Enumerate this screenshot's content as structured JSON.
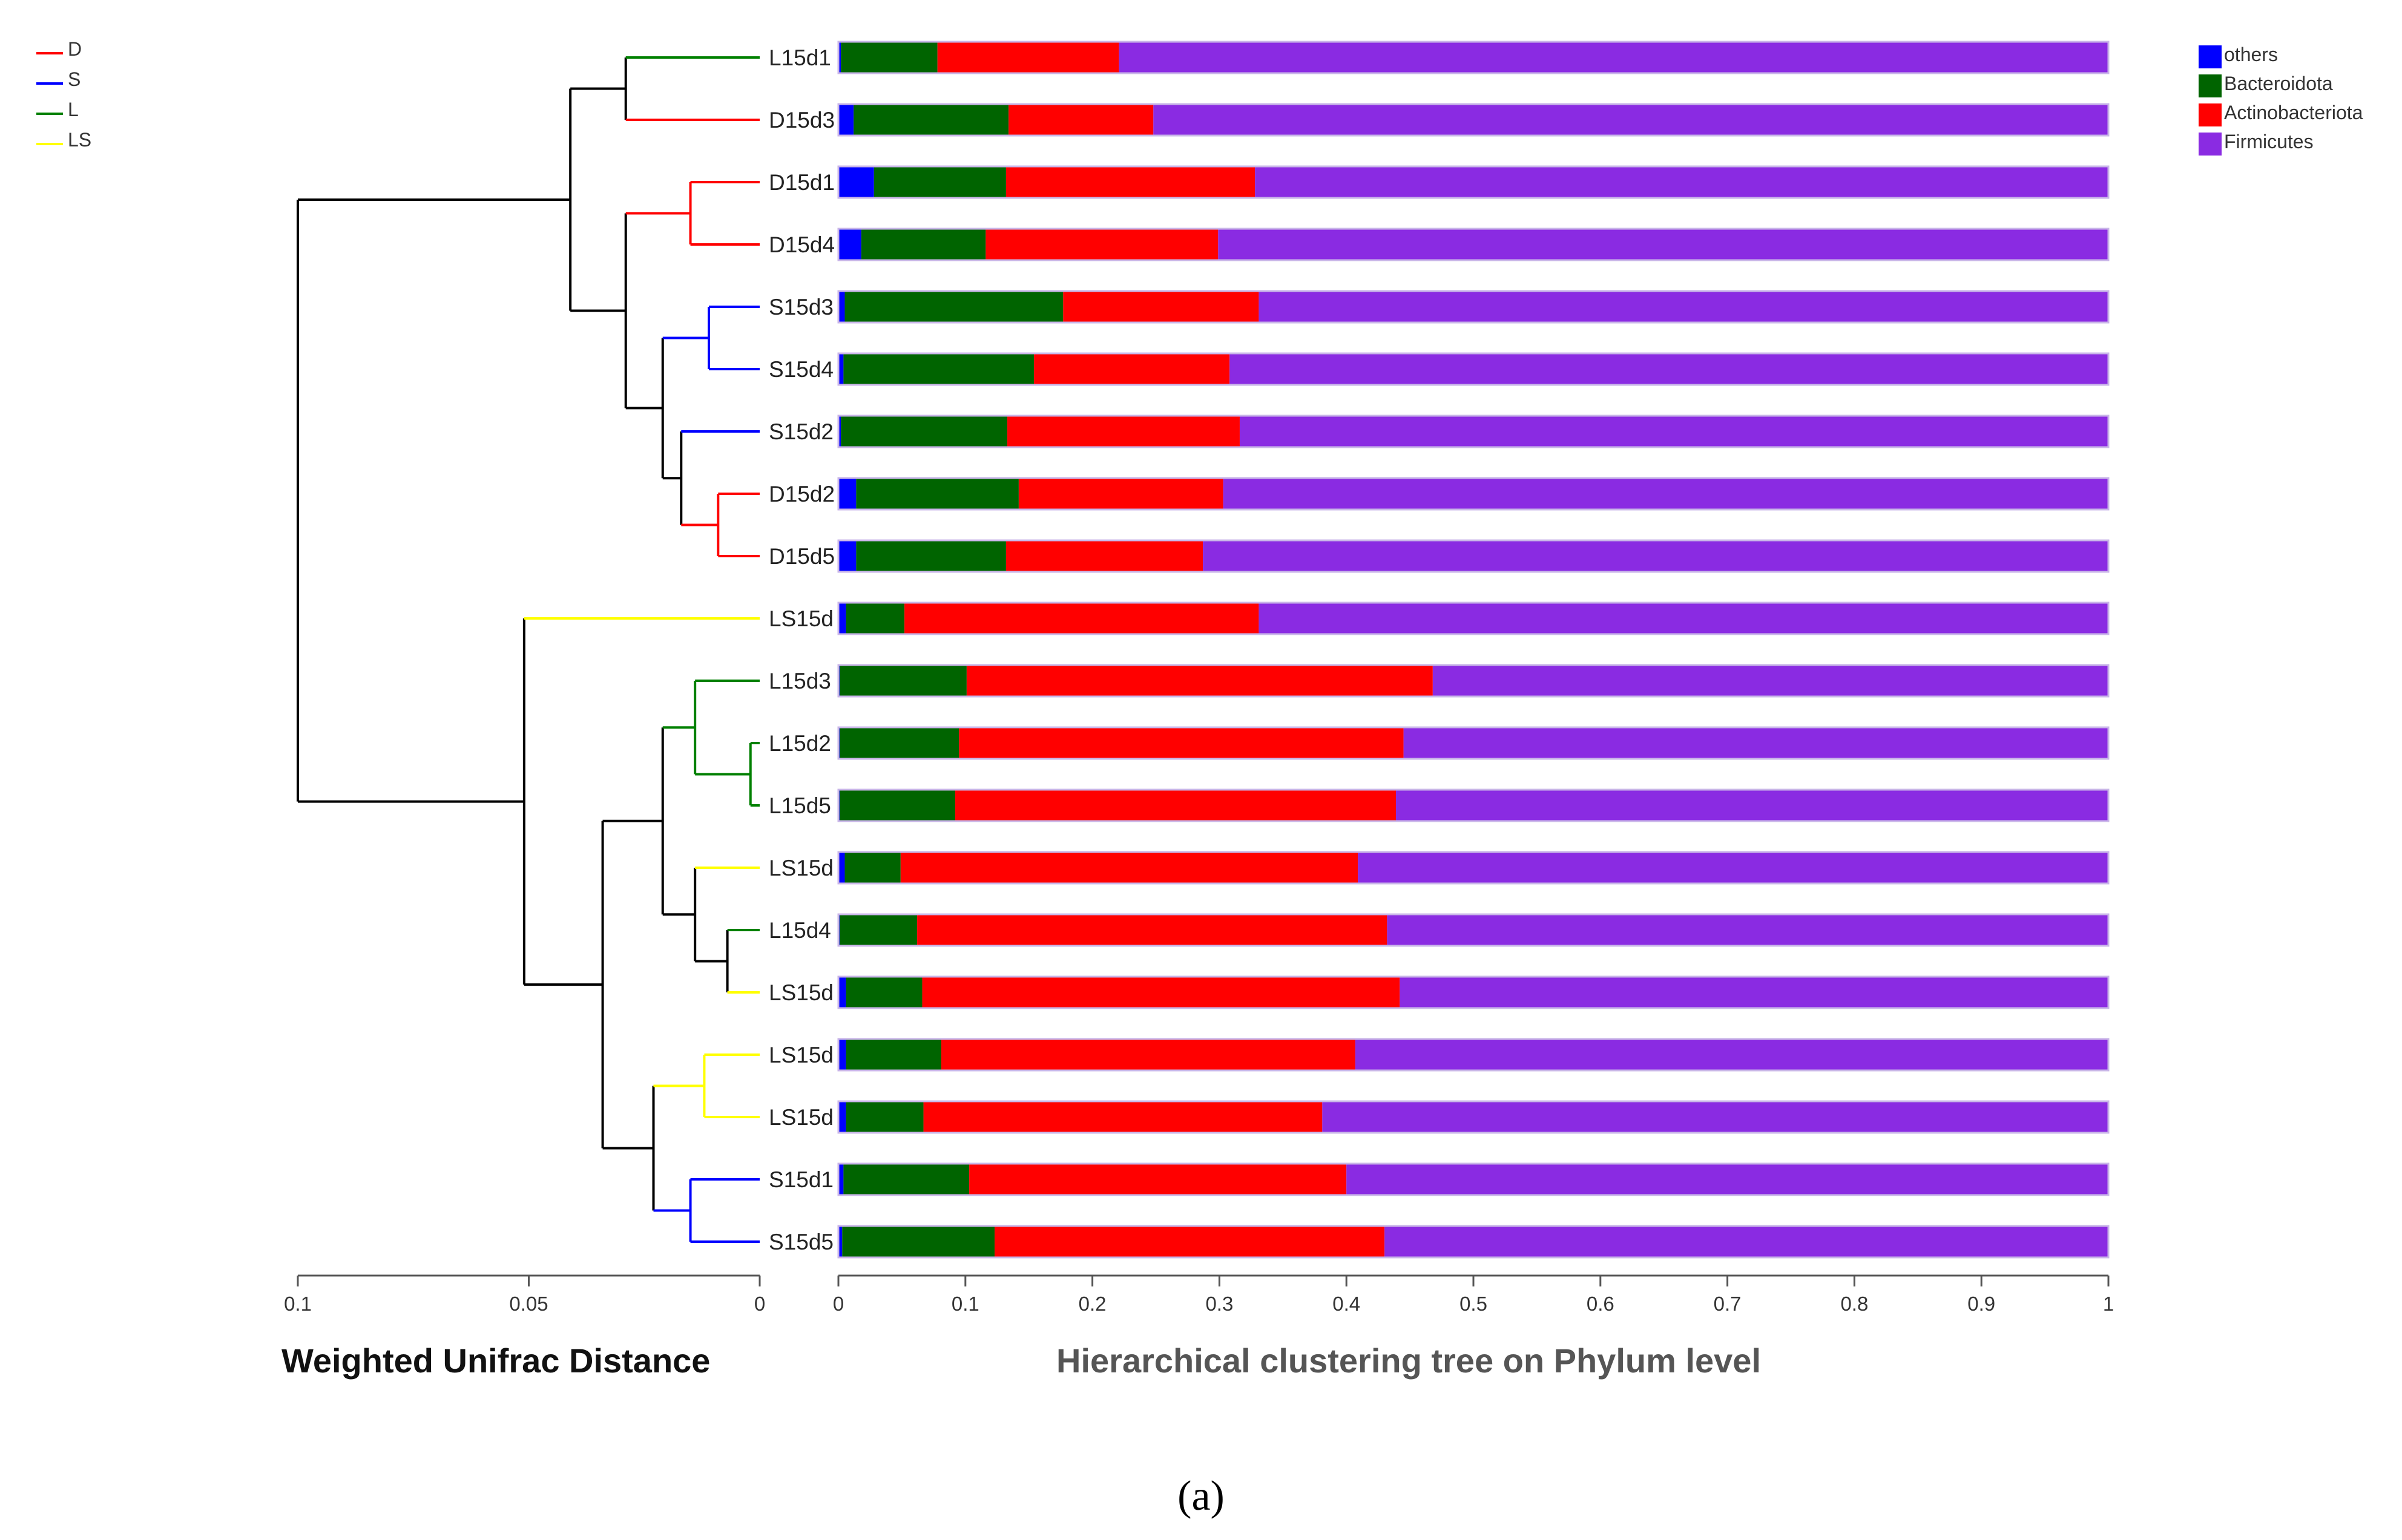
{
  "chart_data": {
    "type": "bar",
    "orientation": "horizontal",
    "stacked": true,
    "samples": [
      {
        "label": "L15d1",
        "group": "L"
      },
      {
        "label": "D15d3",
        "group": "D"
      },
      {
        "label": "D15d1",
        "group": "D"
      },
      {
        "label": "D15d4",
        "group": "D"
      },
      {
        "label": "S15d3",
        "group": "S"
      },
      {
        "label": "S15d4",
        "group": "S"
      },
      {
        "label": "S15d2",
        "group": "S"
      },
      {
        "label": "D15d2",
        "group": "D"
      },
      {
        "label": "D15d5",
        "group": "D"
      },
      {
        "label": "LS15d",
        "group": "LS"
      },
      {
        "label": "L15d3",
        "group": "L"
      },
      {
        "label": "L15d2",
        "group": "L"
      },
      {
        "label": "L15d5",
        "group": "L"
      },
      {
        "label": "LS15d",
        "group": "LS"
      },
      {
        "label": "L15d4",
        "group": "L"
      },
      {
        "label": "LS15d",
        "group": "LS"
      },
      {
        "label": "LS15d",
        "group": "LS"
      },
      {
        "label": "LS15d",
        "group": "LS"
      },
      {
        "label": "S15d1",
        "group": "S"
      },
      {
        "label": "S15d5",
        "group": "S"
      }
    ],
    "series": [
      {
        "name": "others",
        "color": "#0000ff",
        "values": [
          0.002,
          0.012,
          0.028,
          0.018,
          0.005,
          0.004,
          0.002,
          0.014,
          0.014,
          0.006,
          0.001,
          0.001,
          0.001,
          0.005,
          0.001,
          0.006,
          0.006,
          0.006,
          0.004,
          0.003
        ]
      },
      {
        "name": "Bacteroidota",
        "color": "#006400",
        "values": [
          0.076,
          0.122,
          0.104,
          0.098,
          0.172,
          0.15,
          0.131,
          0.128,
          0.118,
          0.046,
          0.1,
          0.094,
          0.091,
          0.044,
          0.061,
          0.06,
          0.075,
          0.061,
          0.099,
          0.12
        ]
      },
      {
        "name": "Actinobacteriota",
        "color": "#ff0000",
        "values": [
          0.143,
          0.114,
          0.196,
          0.183,
          0.154,
          0.154,
          0.183,
          0.161,
          0.155,
          0.279,
          0.367,
          0.35,
          0.347,
          0.36,
          0.37,
          0.376,
          0.326,
          0.314,
          0.297,
          0.307
        ]
      },
      {
        "name": "Firmicutes",
        "color": "#8a2be2",
        "values": [
          0.779,
          0.752,
          0.672,
          0.701,
          0.669,
          0.692,
          0.684,
          0.697,
          0.713,
          0.669,
          0.532,
          0.555,
          0.561,
          0.591,
          0.568,
          0.558,
          0.593,
          0.619,
          0.6,
          0.57
        ]
      }
    ],
    "bar_axis": {
      "ticks": [
        "0",
        "0.1",
        "0.2",
        "0.3",
        "0.4",
        "0.5",
        "0.6",
        "0.7",
        "0.8",
        "0.9",
        "1"
      ],
      "range": [
        0,
        1
      ]
    },
    "tree_axis": {
      "ticks": [
        "0.1",
        "0.05",
        "0"
      ],
      "range": [
        0.1,
        0
      ]
    },
    "tree": {
      "nodes": [
        {
          "id": "a",
          "children": [
            "L15d1",
            "D15d3"
          ],
          "height": 0.029,
          "color": "#000000"
        },
        {
          "id": "b",
          "children": [
            "D15d1",
            "D15d4"
          ],
          "height": 0.015,
          "color": "#ff0000"
        },
        {
          "id": "c",
          "children": [
            "S15d3",
            "S15d4"
          ],
          "height": 0.011,
          "color": "#0000ff"
        },
        {
          "id": "d",
          "children": [
            "D15d2",
            "D15d5"
          ],
          "height": 0.009,
          "color": "#ff0000"
        },
        {
          "id": "e",
          "children": [
            "S15d2",
            "d"
          ],
          "height": 0.017,
          "color": "#000000"
        },
        {
          "id": "f",
          "children": [
            "c",
            "e"
          ],
          "height": 0.021,
          "color": "#000000"
        },
        {
          "id": "g",
          "children": [
            "b",
            "f"
          ],
          "height": 0.029,
          "color": "#000000"
        },
        {
          "id": "h",
          "children": [
            "a",
            "g"
          ],
          "height": 0.041,
          "color": "#000000"
        },
        {
          "id": "i",
          "children": [
            "L15d2",
            "L15d5"
          ],
          "height": 0.002,
          "color": "#008000"
        },
        {
          "id": "j",
          "children": [
            "L15d3",
            "i"
          ],
          "height": 0.014,
          "color": "#008000"
        },
        {
          "id": "k",
          "children": [
            "L15d4",
            "LS15d#2"
          ],
          "height": 0.007,
          "color": "#000000"
        },
        {
          "id": "l",
          "children": [
            "LS15d#1",
            "k"
          ],
          "height": 0.014,
          "color": "#000000"
        },
        {
          "id": "m",
          "children": [
            "j",
            "l"
          ],
          "height": 0.021,
          "color": "#000000"
        },
        {
          "id": "n",
          "children": [
            "LS15d#3",
            "LS15d#4"
          ],
          "height": 0.012,
          "color": "#ffff00"
        },
        {
          "id": "o",
          "children": [
            "S15d1",
            "S15d5"
          ],
          "height": 0.015,
          "color": "#0000ff"
        },
        {
          "id": "p",
          "children": [
            "n",
            "o"
          ],
          "height": 0.023,
          "color": "#000000"
        },
        {
          "id": "q",
          "children": [
            "m",
            "p"
          ],
          "height": 0.034,
          "color": "#000000"
        },
        {
          "id": "r",
          "children": [
            "LS15d#0",
            "q"
          ],
          "height": 0.051,
          "color": "#000000"
        },
        {
          "id": "root",
          "children": [
            "h",
            "r"
          ],
          "height": 0.1,
          "color": "#000000"
        }
      ]
    },
    "xlabel_tree": "Weighted Unifrac Distance",
    "xlabel_bars": "Hierarchical clustering tree on Phylum level",
    "ylabel": ""
  },
  "group_legend": {
    "placement": "top-left",
    "items": [
      {
        "label": "D",
        "color": "#ff0000"
      },
      {
        "label": "S",
        "color": "#0000ff"
      },
      {
        "label": "L",
        "color": "#008000"
      },
      {
        "label": "LS",
        "color": "#ffff00"
      }
    ]
  },
  "phylum_legend": {
    "placement": "top-right",
    "items": [
      {
        "label": "others",
        "color": "#0000ff"
      },
      {
        "label": "Bacteroidota",
        "color": "#006400"
      },
      {
        "label": "Actinobacteriota",
        "color": "#ff0000"
      },
      {
        "label": "Firmicutes",
        "color": "#8a2be2"
      }
    ]
  },
  "caption": "(a)"
}
